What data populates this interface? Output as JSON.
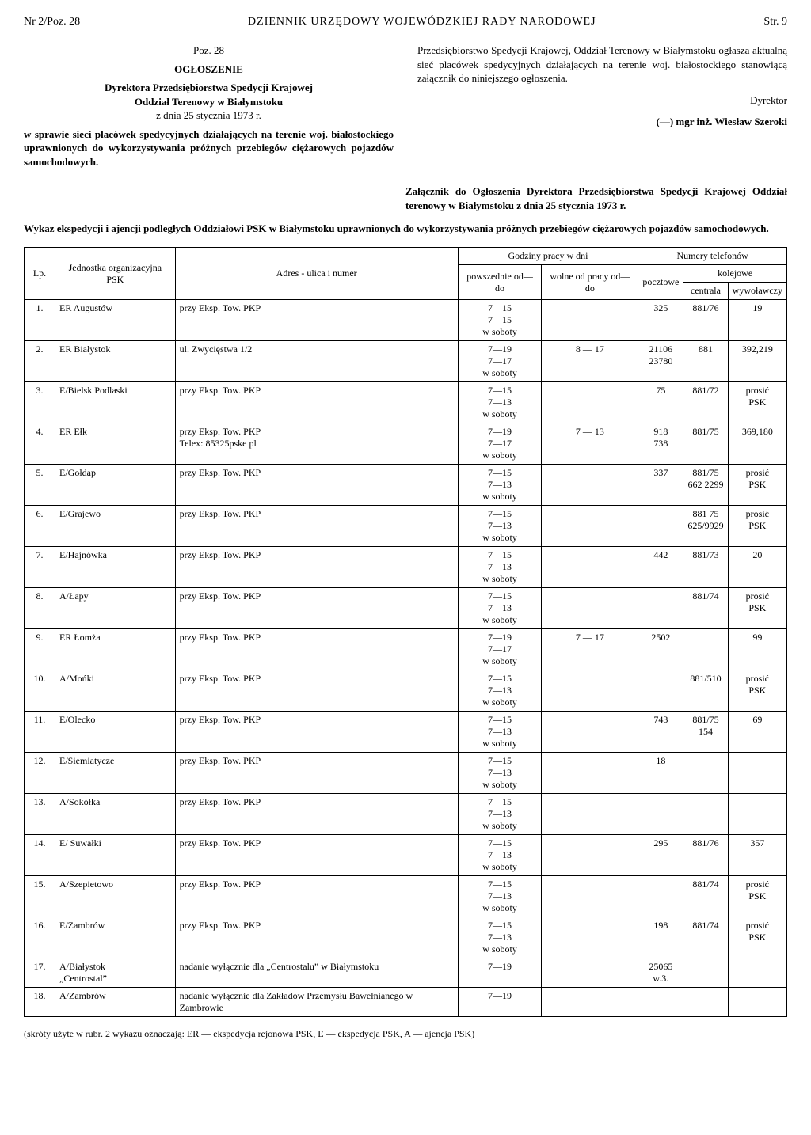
{
  "header": {
    "left": "Nr 2/Poz. 28",
    "center": "DZIENNIK URZĘDOWY WOJEWÓDZKIEJ RADY NARODOWEJ",
    "right": "Str. 9"
  },
  "leftCol": {
    "poz": "Poz. 28",
    "ogl": "OGŁOSZENIE",
    "line1": "Dyrektora Przedsiębiorstwa Spedycji Krajowej",
    "line2": "Oddział Terenowy w Białymstoku",
    "line3": "z dnia 25 stycznia 1973 r.",
    "body": "w sprawie sieci placówek spedycyjnych działających na terenie woj. białostockiego uprawnionych do wykorzystywania próżnych przebiegów ciężarowych pojazdów samochodowych."
  },
  "rightCol": {
    "body": "Przedsiębiorstwo Spedycji Krajowej, Oddział Terenowy w Białymstoku ogłasza aktualną sieć placówek spedycyjnych działających na terenie woj. białostockiego stanowiącą załącznik do niniejszego ogłoszenia.",
    "sig1": "Dyrektor",
    "sig2": "(—) mgr inż. Wiesław Szeroki"
  },
  "attach": {
    "title": "Załącznik do Ogłoszenia Dyrektora Przedsiębiorstwa Spedycji Krajowej Oddział terenowy w Białymstoku z dnia 25 stycznia 1973 r.",
    "wykaz": "Wykaz ekspedycji i ajencji podległych Oddziałowi PSK w Białymstoku uprawnionych do wykorzystywania próżnych przebiegów ciężarowych pojazdów samochodowych."
  },
  "tableHeaders": {
    "lp": "Lp.",
    "jednostka": "Jednostka organizacyjna PSK",
    "adres": "Adres - ulica i numer",
    "godziny": "Godziny pracy w dni",
    "powszednie": "powszednie od—do",
    "wolne": "wolne od pracy od—do",
    "numery": "Numery telefonów",
    "pocztowe": "pocztowe",
    "kolejowe": "kolejowe",
    "centrala": "centrala",
    "wywolawczy": "wywoławczy"
  },
  "rows": [
    {
      "lp": "1.",
      "jed": "ER Augustów",
      "adr": "przy Eksp. Tow. PKP",
      "pow": "7—15\n7—15\nw soboty",
      "wol": "",
      "pocz": "325",
      "cen": "881/76",
      "wyw": "19"
    },
    {
      "lp": "2.",
      "jed": "ER Białystok",
      "adr": "ul. Zwycięstwa 1/2",
      "pow": "7—19\n7—17\nw soboty",
      "wol": "8 — 17",
      "pocz": "21106\n23780",
      "cen": "881",
      "wyw": "392,219"
    },
    {
      "lp": "3.",
      "jed": "E/Bielsk Podlaski",
      "adr": "przy Eksp. Tow. PKP",
      "pow": "7—15\n7—13\nw soboty",
      "wol": "",
      "pocz": "75",
      "cen": "881/72",
      "wyw": "prosić\nPSK"
    },
    {
      "lp": "4.",
      "jed": "ER Ełk",
      "adr": "przy Eksp. Tow. PKP\nTelex: 85325pske pl",
      "pow": "7—19\n7—17\nw soboty",
      "wol": "7 — 13",
      "pocz": "918\n738",
      "cen": "881/75",
      "wyw": "369,180"
    },
    {
      "lp": "5.",
      "jed": "E/Gołdap",
      "adr": "przy Eksp. Tow. PKP",
      "pow": "7—15\n7—13\nw soboty",
      "wol": "",
      "pocz": "337",
      "cen": "881/75\n662 2299",
      "wyw": "prosić\nPSK"
    },
    {
      "lp": "6.",
      "jed": "E/Grajewo",
      "adr": "przy Eksp. Tow. PKP",
      "pow": "7—15\n7—13\nw soboty",
      "wol": "",
      "pocz": "",
      "cen": "881 75\n625/9929",
      "wyw": "prosić\nPSK"
    },
    {
      "lp": "7.",
      "jed": "E/Hajnówka",
      "adr": "przy Eksp. Tow. PKP",
      "pow": "7—15\n7—13\nw soboty",
      "wol": "",
      "pocz": "442",
      "cen": "881/73",
      "wyw": "20"
    },
    {
      "lp": "8.",
      "jed": "A/Łapy",
      "adr": "przy Eksp. Tow. PKP",
      "pow": "7—15\n7—13\nw soboty",
      "wol": "",
      "pocz": "",
      "cen": "881/74",
      "wyw": "prosić\nPSK"
    },
    {
      "lp": "9.",
      "jed": "ER Łomża",
      "adr": "przy Eksp. Tow. PKP",
      "pow": "7—19\n7—17\nw soboty",
      "wol": "7 — 17",
      "pocz": "2502",
      "cen": "",
      "wyw": "99"
    },
    {
      "lp": "10.",
      "jed": "A/Mońki",
      "adr": "przy Eksp. Tow. PKP",
      "pow": "7—15\n7—13\nw soboty",
      "wol": "",
      "pocz": "",
      "cen": "881/510",
      "wyw": "prosić\nPSK"
    },
    {
      "lp": "11.",
      "jed": "E/Olecko",
      "adr": "przy Eksp. Tow. PKP",
      "pow": "7—15\n7—13\nw soboty",
      "wol": "",
      "pocz": "743",
      "cen": "881/75\n154",
      "wyw": "69"
    },
    {
      "lp": "12.",
      "jed": "E/Siemiatycze",
      "adr": "przy Eksp. Tow. PKP",
      "pow": "7—15\n7—13\nw soboty",
      "wol": "",
      "pocz": "18",
      "cen": "",
      "wyw": ""
    },
    {
      "lp": "13.",
      "jed": "A/Sokółka",
      "adr": "przy Eksp. Tow. PKP",
      "pow": "7—15\n7—13\nw soboty",
      "wol": "",
      "pocz": "",
      "cen": "",
      "wyw": ""
    },
    {
      "lp": "14.",
      "jed": "E/ Suwałki",
      "adr": "przy Eksp. Tow. PKP",
      "pow": "7—15\n7—13\nw soboty",
      "wol": "",
      "pocz": "295",
      "cen": "881/76",
      "wyw": "357"
    },
    {
      "lp": "15.",
      "jed": "A/Szepietowo",
      "adr": "przy Eksp. Tow. PKP",
      "pow": "7—15\n7—13\nw soboty",
      "wol": "",
      "pocz": "",
      "cen": "881/74",
      "wyw": "prosić\nPSK"
    },
    {
      "lp": "16.",
      "jed": "E/Zambrów",
      "adr": "przy Eksp. Tow. PKP",
      "pow": "7—15\n7—13\nw soboty",
      "wol": "",
      "pocz": "198",
      "cen": "881/74",
      "wyw": "prosić\nPSK"
    },
    {
      "lp": "17.",
      "jed": "A/Białystok\n„Centrostal”",
      "adr": "nadanie wyłącznie dla „Centrostalu” w Białymstoku",
      "pow": "7—19",
      "wol": "",
      "pocz": "25065\nw.3.",
      "cen": "",
      "wyw": ""
    },
    {
      "lp": "18.",
      "jed": "A/Zambrów",
      "adr": "nadanie wyłącznie dla Zakładów Przemysłu Bawełnianego w Zambrowie",
      "pow": "7—19",
      "wol": "",
      "pocz": "",
      "cen": "",
      "wyw": ""
    }
  ],
  "footnote": "(skróty użyte w rubr. 2 wykazu oznaczają: ER — ekspedycja rejonowa PSK, E — ekspedycja PSK, A — ajencja PSK)"
}
